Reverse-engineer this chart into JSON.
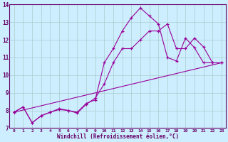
{
  "title": "",
  "xlabel": "Windchill (Refroidissement éolien,°C)",
  "ylabel": "",
  "bg_color": "#cceeff",
  "line_color": "#990099",
  "grid_color": "#aacccc",
  "axis_color": "#660066",
  "text_color": "#660066",
  "xlim": [
    -0.5,
    23.5
  ],
  "ylim": [
    7,
    14
  ],
  "xticks": [
    0,
    1,
    2,
    3,
    4,
    5,
    6,
    7,
    8,
    9,
    10,
    11,
    12,
    13,
    14,
    15,
    16,
    17,
    18,
    19,
    20,
    21,
    22,
    23
  ],
  "yticks": [
    7,
    8,
    9,
    10,
    11,
    12,
    13,
    14
  ],
  "series": [
    {
      "x": [
        0,
        1,
        2,
        3,
        4,
        5,
        6,
        7,
        8,
        9,
        10,
        11,
        12,
        13,
        14,
        15,
        16,
        17,
        18,
        19,
        20,
        21,
        22,
        23
      ],
      "y": [
        7.9,
        8.2,
        7.3,
        7.7,
        7.9,
        8.1,
        8.0,
        7.9,
        8.4,
        8.6,
        10.7,
        11.5,
        12.5,
        13.25,
        13.8,
        13.35,
        12.9,
        11.0,
        10.8,
        12.1,
        11.55,
        10.7,
        10.7,
        null
      ]
    },
    {
      "x": [
        0,
        1,
        2,
        3,
        4,
        5,
        6,
        7,
        8,
        9,
        10,
        11,
        12,
        13,
        14,
        15,
        16,
        17,
        18,
        19,
        20,
        21,
        22,
        23
      ],
      "y": [
        7.9,
        8.2,
        7.3,
        7.7,
        7.9,
        8.05,
        8.0,
        7.85,
        8.35,
        8.7,
        9.5,
        10.7,
        11.5,
        11.5,
        12.0,
        12.5,
        12.5,
        12.9,
        11.5,
        11.5,
        12.1,
        11.6,
        10.7,
        10.7
      ]
    },
    {
      "x": [
        0,
        23
      ],
      "y": [
        7.9,
        10.7
      ]
    }
  ]
}
